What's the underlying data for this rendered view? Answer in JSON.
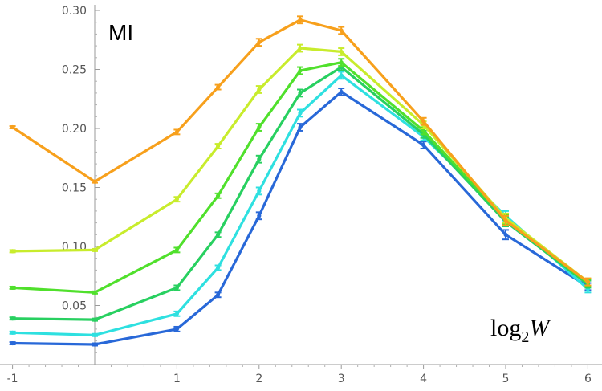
{
  "chart_data": {
    "type": "line",
    "ylabel": "MI",
    "xlabel": {
      "base": "log",
      "subscript": "2",
      "variable": "W"
    },
    "xlim": [
      -1.1,
      6.1
    ],
    "ylim": [
      0.0,
      0.305
    ],
    "x_ticks": [
      -1,
      1,
      2,
      3,
      4,
      5,
      6
    ],
    "x_tick_labels": [
      "-1",
      "1",
      "2",
      "3",
      "4",
      "5",
      "6"
    ],
    "y_ticks": [
      0.05,
      0.1,
      0.15,
      0.2,
      0.25,
      0.3
    ],
    "y_tick_labels": [
      "0.05",
      "0.10",
      "0.15",
      "0.20",
      "0.25",
      "0.30"
    ],
    "grid": false,
    "error_bars": true,
    "x": [
      -1,
      0,
      1,
      1.5,
      2,
      2.5,
      3,
      4,
      5,
      6
    ],
    "series": [
      {
        "color": "#f7a01c",
        "values": [
          0.201,
          0.155,
          0.197,
          0.235,
          0.273,
          0.292,
          0.283,
          0.206,
          0.122,
          0.07
        ]
      },
      {
        "color": "#c8ec2c",
        "values": [
          0.096,
          0.097,
          0.14,
          0.185,
          0.233,
          0.268,
          0.265,
          0.203,
          0.124,
          0.07
        ]
      },
      {
        "color": "#50e02c",
        "values": [
          0.065,
          0.061,
          0.097,
          0.143,
          0.201,
          0.249,
          0.256,
          0.198,
          0.123,
          0.069
        ]
      },
      {
        "color": "#28d060",
        "values": [
          0.039,
          0.038,
          0.065,
          0.11,
          0.174,
          0.23,
          0.252,
          0.195,
          0.121,
          0.068
        ]
      },
      {
        "color": "#2ee0e0",
        "values": [
          0.027,
          0.025,
          0.043,
          0.082,
          0.147,
          0.213,
          0.245,
          0.193,
          0.126,
          0.064
        ]
      },
      {
        "color": "#2868d8",
        "values": [
          0.018,
          0.017,
          0.03,
          0.059,
          0.126,
          0.201,
          0.231,
          0.186,
          0.11,
          0.066
        ]
      }
    ],
    "error_sizes": [
      0.001,
      0.001,
      0.002,
      0.002,
      0.003,
      0.003,
      0.003,
      0.003,
      0.004,
      0.003
    ]
  }
}
